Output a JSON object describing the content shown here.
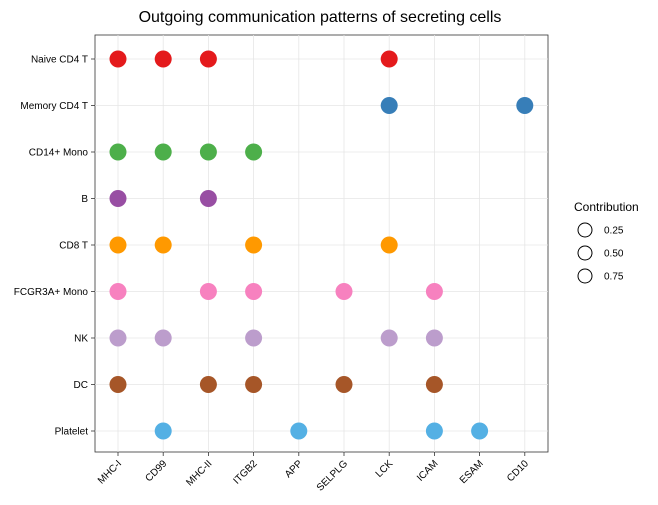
{
  "chart_data": {
    "type": "scatter",
    "title": "Outgoing communication patterns of secreting cells",
    "xlabel": "",
    "ylabel": "",
    "x_categories": [
      "MHC-I",
      "CD99",
      "MHC-II",
      "ITGB2",
      "APP",
      "SELPLG",
      "LCK",
      "ICAM",
      "ESAM",
      "CD10"
    ],
    "y_categories": [
      "Naive CD4 T",
      "Memory CD4 T",
      "CD14+ Mono",
      "B",
      "CD8 T",
      "FCGR3A+ Mono",
      "NK",
      "DC",
      "Platelet"
    ],
    "grid": true,
    "legend": {
      "title": "Contribution",
      "position": "right",
      "entries": [
        "0.25",
        "0.50",
        "0.75"
      ],
      "sizes": [
        0.25,
        0.5,
        0.75
      ]
    },
    "series": [
      {
        "name": "Naive CD4 T",
        "color": "#E41A1C",
        "points": [
          {
            "x": "MHC-I",
            "size": 1
          },
          {
            "x": "CD99",
            "size": 1
          },
          {
            "x": "MHC-II",
            "size": 1
          },
          {
            "x": "LCK",
            "size": 1
          }
        ]
      },
      {
        "name": "Memory CD4 T",
        "color": "#377EB8",
        "points": [
          {
            "x": "LCK",
            "size": 1
          },
          {
            "x": "CD10",
            "size": 1
          }
        ]
      },
      {
        "name": "CD14+ Mono",
        "color": "#4DAF4A",
        "points": [
          {
            "x": "MHC-I",
            "size": 1
          },
          {
            "x": "CD99",
            "size": 1
          },
          {
            "x": "MHC-II",
            "size": 1
          },
          {
            "x": "ITGB2",
            "size": 1
          }
        ]
      },
      {
        "name": "B",
        "color": "#984EA3",
        "points": [
          {
            "x": "MHC-I",
            "size": 1
          },
          {
            "x": "MHC-II",
            "size": 1
          }
        ]
      },
      {
        "name": "CD8 T",
        "color": "#FF9900",
        "points": [
          {
            "x": "MHC-I",
            "size": 1
          },
          {
            "x": "CD99",
            "size": 1
          },
          {
            "x": "ITGB2",
            "size": 1
          },
          {
            "x": "LCK",
            "size": 1
          }
        ]
      },
      {
        "name": "FCGR3A+ Mono",
        "color": "#F781BF",
        "points": [
          {
            "x": "MHC-I",
            "size": 1
          },
          {
            "x": "MHC-II",
            "size": 1
          },
          {
            "x": "ITGB2",
            "size": 1
          },
          {
            "x": "SELPLG",
            "size": 1
          },
          {
            "x": "ICAM",
            "size": 1
          }
        ]
      },
      {
        "name": "NK",
        "color": "#BC9DCC",
        "points": [
          {
            "x": "MHC-I",
            "size": 1
          },
          {
            "x": "CD99",
            "size": 1
          },
          {
            "x": "ITGB2",
            "size": 1
          },
          {
            "x": "LCK",
            "size": 1
          },
          {
            "x": "ICAM",
            "size": 1
          }
        ]
      },
      {
        "name": "DC",
        "color": "#A65628",
        "points": [
          {
            "x": "MHC-I",
            "size": 1
          },
          {
            "x": "MHC-II",
            "size": 1
          },
          {
            "x": "ITGB2",
            "size": 1
          },
          {
            "x": "SELPLG",
            "size": 1
          },
          {
            "x": "ICAM",
            "size": 1
          }
        ]
      },
      {
        "name": "Platelet",
        "color": "#54B0E4",
        "points": [
          {
            "x": "CD99",
            "size": 1
          },
          {
            "x": "APP",
            "size": 1
          },
          {
            "x": "ICAM",
            "size": 1
          },
          {
            "x": "ESAM",
            "size": 1
          }
        ]
      }
    ]
  }
}
